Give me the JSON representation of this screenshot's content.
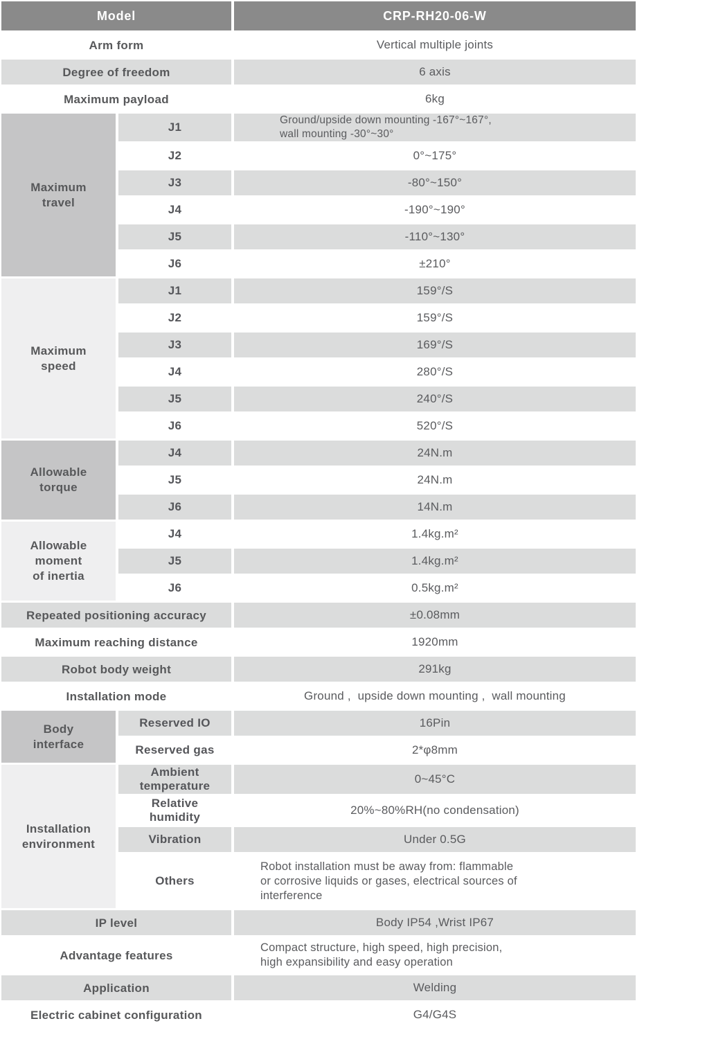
{
  "palette": {
    "header_bg": "#8a8a8a",
    "header_text": "#ffffff",
    "group_cell_dark": "#c5c5c6",
    "group_cell_light": "#efeff0",
    "row_gray": "#dbdcdc",
    "row_white": "#ffffff",
    "text": "#57585a"
  },
  "header": {
    "label": "Model",
    "value": "CRP-RH20-06-W"
  },
  "general_rows": [
    {
      "label": "Arm form",
      "value": "Vertical multiple joints"
    },
    {
      "label": "Degree of freedom",
      "value": "6 axis"
    },
    {
      "label": "Maximum payload",
      "value": "6kg"
    }
  ],
  "max_travel": {
    "label": "Maximum\ntravel",
    "rows": [
      {
        "joint": "J1",
        "value": "Ground/upside down mounting -167°~167°,\nwall mounting -30°~30°"
      },
      {
        "joint": "J2",
        "value": "0°~175°"
      },
      {
        "joint": "J3",
        "value": "-80°~150°"
      },
      {
        "joint": "J4",
        "value": "-190°~190°"
      },
      {
        "joint": "J5",
        "value": "-110°~130°"
      },
      {
        "joint": "J6",
        "value": "±210°"
      }
    ]
  },
  "max_speed": {
    "label": "Maximum\nspeed",
    "rows": [
      {
        "joint": "J1",
        "value": "159°/S"
      },
      {
        "joint": "J2",
        "value": "159°/S"
      },
      {
        "joint": "J3",
        "value": "169°/S"
      },
      {
        "joint": "J4",
        "value": "280°/S"
      },
      {
        "joint": "J5",
        "value": "240°/S"
      },
      {
        "joint": "J6",
        "value": "520°/S"
      }
    ]
  },
  "allowable_torque": {
    "label": "Allowable\ntorque",
    "rows": [
      {
        "joint": "J4",
        "value": "24N.m"
      },
      {
        "joint": "J5",
        "value": "24N.m"
      },
      {
        "joint": "J6",
        "value": "14N.m"
      }
    ]
  },
  "moment_of_inertia": {
    "label": "Allowable\nmoment\nof inertia",
    "rows": [
      {
        "joint": "J4",
        "value": "1.4kg.m²"
      },
      {
        "joint": "J5",
        "value": "1.4kg.m²"
      },
      {
        "joint": "J6",
        "value": "0.5kg.m²"
      }
    ]
  },
  "mid_rows": [
    {
      "label": "Repeated positioning accuracy",
      "value": "±0.08mm"
    },
    {
      "label": "Maximum reaching distance",
      "value": "1920mm"
    },
    {
      "label": "Robot body weight",
      "value": "291kg"
    },
    {
      "label": "Installation mode",
      "value": "Ground ,  upside down mounting ,  wall mounting"
    }
  ],
  "body_interface": {
    "label": "Body\ninterface",
    "rows": [
      {
        "name": "Reserved IO",
        "value": "16Pin"
      },
      {
        "name": "Reserved gas",
        "value": "2*φ8mm"
      }
    ]
  },
  "environment": {
    "label": "Installation\nenvironment",
    "rows": [
      {
        "name": "Ambient\ntemperature",
        "value": "0~45°C"
      },
      {
        "name": "Relative\nhumidity",
        "value": "20%~80%RH(no condensation)"
      },
      {
        "name": "Vibration",
        "value": "Under 0.5G"
      },
      {
        "name": "Others",
        "value": "Robot installation must be away from: flammable\nor corrosive liquids or gases, electrical sources of\ninterference"
      }
    ]
  },
  "bottom_rows": [
    {
      "label": "IP level",
      "value": "Body IP54 ,Wrist IP67"
    },
    {
      "label": "Advantage features",
      "value": "Compact structure, high speed, high precision,\nhigh expansibility and easy operation"
    },
    {
      "label": "Application",
      "value": "Welding"
    },
    {
      "label": "Electric cabinet configuration",
      "value": "G4/G4S"
    }
  ]
}
